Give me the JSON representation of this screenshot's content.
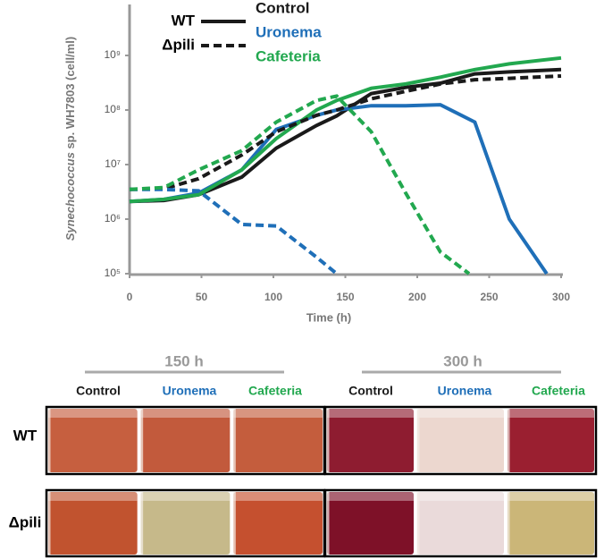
{
  "chart_data": {
    "type": "line",
    "log_y": true,
    "y_label": {
      "italic": "Synechococcus",
      "rest": " sp. WH7803 (cell/ml)"
    },
    "x_label": "Time (h)",
    "xlim": [
      0,
      300
    ],
    "xticks": [
      0,
      50,
      100,
      150,
      200,
      250,
      300
    ],
    "ylim": [
      100000,
      10000000000
    ],
    "yticks": [
      {
        "value": 100000,
        "label": "10⁵"
      },
      {
        "value": 1000000,
        "label": "10⁶"
      },
      {
        "value": 10000000,
        "label": "10⁷"
      },
      {
        "value": 100000000,
        "label": "10⁸"
      },
      {
        "value": 1000000000,
        "label": "10⁹"
      }
    ],
    "legend": {
      "strains": [
        {
          "label": "WT",
          "dash": "solid"
        },
        {
          "label": "Δpili",
          "dash": "dashed"
        }
      ],
      "treatments": [
        {
          "label": "Control",
          "color": "#1a1a1a"
        },
        {
          "label": "Uronema",
          "color": "#1f6fb8"
        },
        {
          "label": "Cafeteria",
          "color": "#22a84f"
        }
      ]
    },
    "series": [
      {
        "color": "#1a1a1a",
        "dash": "solid",
        "x": [
          0,
          24,
          48,
          78,
          102,
          130,
          144,
          168,
          192,
          216,
          240,
          264,
          300
        ],
        "values": [
          2100000,
          2200000,
          2800000,
          5900000,
          20000000,
          52000000,
          78000000,
          200000000,
          260000000,
          310000000,
          460000000,
          500000000,
          550000000
        ]
      },
      {
        "color": "#1f6fb8",
        "dash": "solid",
        "x": [
          0,
          24,
          48,
          78,
          102,
          130,
          144,
          168,
          192,
          216,
          240,
          264,
          290
        ],
        "values": [
          2100000,
          2300000,
          3000000,
          8000000,
          44000000,
          80000000,
          100000000,
          120000000,
          120000000,
          125000000,
          60000000,
          1000000,
          100000
        ]
      },
      {
        "color": "#22a84f",
        "dash": "solid",
        "x": [
          0,
          24,
          48,
          78,
          102,
          130,
          144,
          168,
          192,
          216,
          240,
          264,
          300
        ],
        "values": [
          2100000,
          2300000,
          2800000,
          8000000,
          30000000,
          100000000,
          150000000,
          250000000,
          300000000,
          400000000,
          550000000,
          700000000,
          900000000
        ]
      },
      {
        "color": "#1a1a1a",
        "dash": "dashed",
        "x": [
          0,
          24,
          48,
          78,
          102,
          130,
          144,
          168,
          192,
          216,
          240,
          264,
          300
        ],
        "values": [
          3500000,
          3600000,
          5500000,
          15000000,
          40000000,
          80000000,
          100000000,
          160000000,
          220000000,
          300000000,
          360000000,
          380000000,
          420000000
        ]
      },
      {
        "color": "#1f6fb8",
        "dash": "dashed",
        "x": [
          0,
          24,
          48,
          78,
          102,
          130,
          144
        ],
        "values": [
          3500000,
          3500000,
          3300000,
          800000,
          750000,
          200000,
          100000
        ]
      },
      {
        "color": "#22a84f",
        "dash": "dashed",
        "x": [
          0,
          24,
          48,
          78,
          102,
          130,
          144,
          168,
          192,
          216,
          236
        ],
        "values": [
          3500000,
          3800000,
          8000000,
          18000000,
          60000000,
          150000000,
          180000000,
          40000000,
          3000000,
          250000,
          100000
        ]
      }
    ]
  },
  "photos": {
    "times": [
      "150 h",
      "300 h"
    ],
    "columns": [
      "Control",
      "Uronema",
      "Cafeteria"
    ],
    "rows": [
      "WT",
      "Δpili"
    ]
  }
}
